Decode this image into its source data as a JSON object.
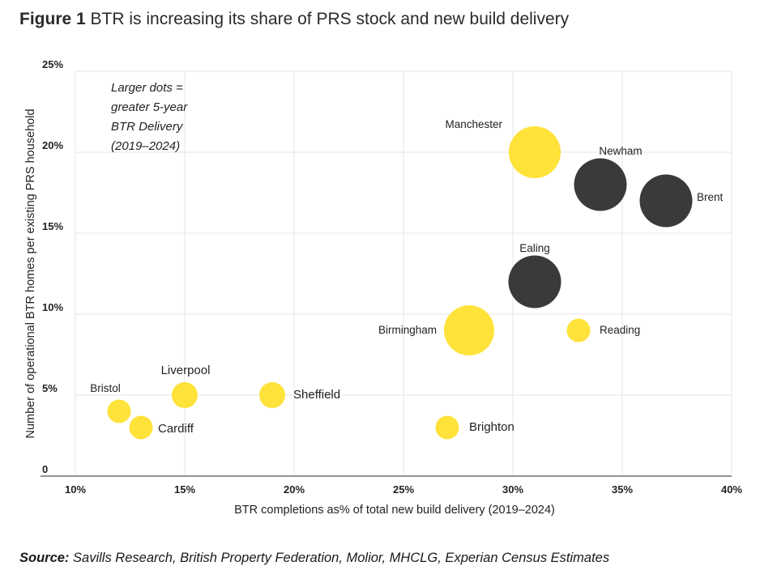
{
  "figure": {
    "number": "Figure 1",
    "title": "BTR is increasing its share of PRS stock and new build delivery"
  },
  "source": {
    "label": "Source:",
    "text": "Savills Research, British Property Federation, Molior, MHCLG, Experian Census Estimates"
  },
  "chart_data": {
    "type": "scatter",
    "xlabel": "BTR completions as% of total new build delivery (2019–2024)",
    "ylabel": "Number of operational BTR homes per existing PRS household",
    "xlim": [
      10,
      40
    ],
    "ylim": [
      0,
      25
    ],
    "x_ticks": [
      "10%",
      "15%",
      "20%",
      "25%",
      "30%",
      "35%",
      "40%"
    ],
    "y_ticks": [
      "0",
      "5%",
      "10%",
      "15%",
      "20%",
      "25%"
    ],
    "grid": true,
    "annotation": [
      "Larger dots =",
      "greater 5-year",
      "BTR Delivery",
      "(2019–2024)"
    ],
    "colors": {
      "london": "#3a3a3a",
      "regional": "#ffe23a"
    },
    "points": [
      {
        "label": "Manchester",
        "x": 31,
        "y": 20,
        "size": "large",
        "group": "regional",
        "color": "#ffe23a"
      },
      {
        "label": "Newham",
        "x": 34,
        "y": 18,
        "size": "medium",
        "group": "london",
        "color": "#3a3a3a"
      },
      {
        "label": "Brent",
        "x": 37,
        "y": 17,
        "size": "medium",
        "group": "london",
        "color": "#3a3a3a"
      },
      {
        "label": "Ealing",
        "x": 31,
        "y": 12,
        "size": "medium",
        "group": "london",
        "color": "#3a3a3a"
      },
      {
        "label": "Birmingham",
        "x": 28,
        "y": 9,
        "size": "large",
        "group": "regional",
        "color": "#ffe23a"
      },
      {
        "label": "Reading",
        "x": 33,
        "y": 9,
        "size": "small",
        "group": "regional",
        "color": "#ffe23a"
      },
      {
        "label": "Liverpool",
        "x": 15,
        "y": 5,
        "size": "small",
        "group": "regional",
        "color": "#ffe23a"
      },
      {
        "label": "Sheffield",
        "x": 19,
        "y": 5,
        "size": "small",
        "group": "regional",
        "color": "#ffe23a"
      },
      {
        "label": "Bristol",
        "x": 12,
        "y": 4,
        "size": "small",
        "group": "regional",
        "color": "#ffe23a"
      },
      {
        "label": "Cardiff",
        "x": 13,
        "y": 3,
        "size": "small",
        "group": "regional",
        "color": "#ffe23a"
      },
      {
        "label": "Brighton",
        "x": 27,
        "y": 3,
        "size": "small",
        "group": "regional",
        "color": "#ffe23a"
      }
    ]
  }
}
